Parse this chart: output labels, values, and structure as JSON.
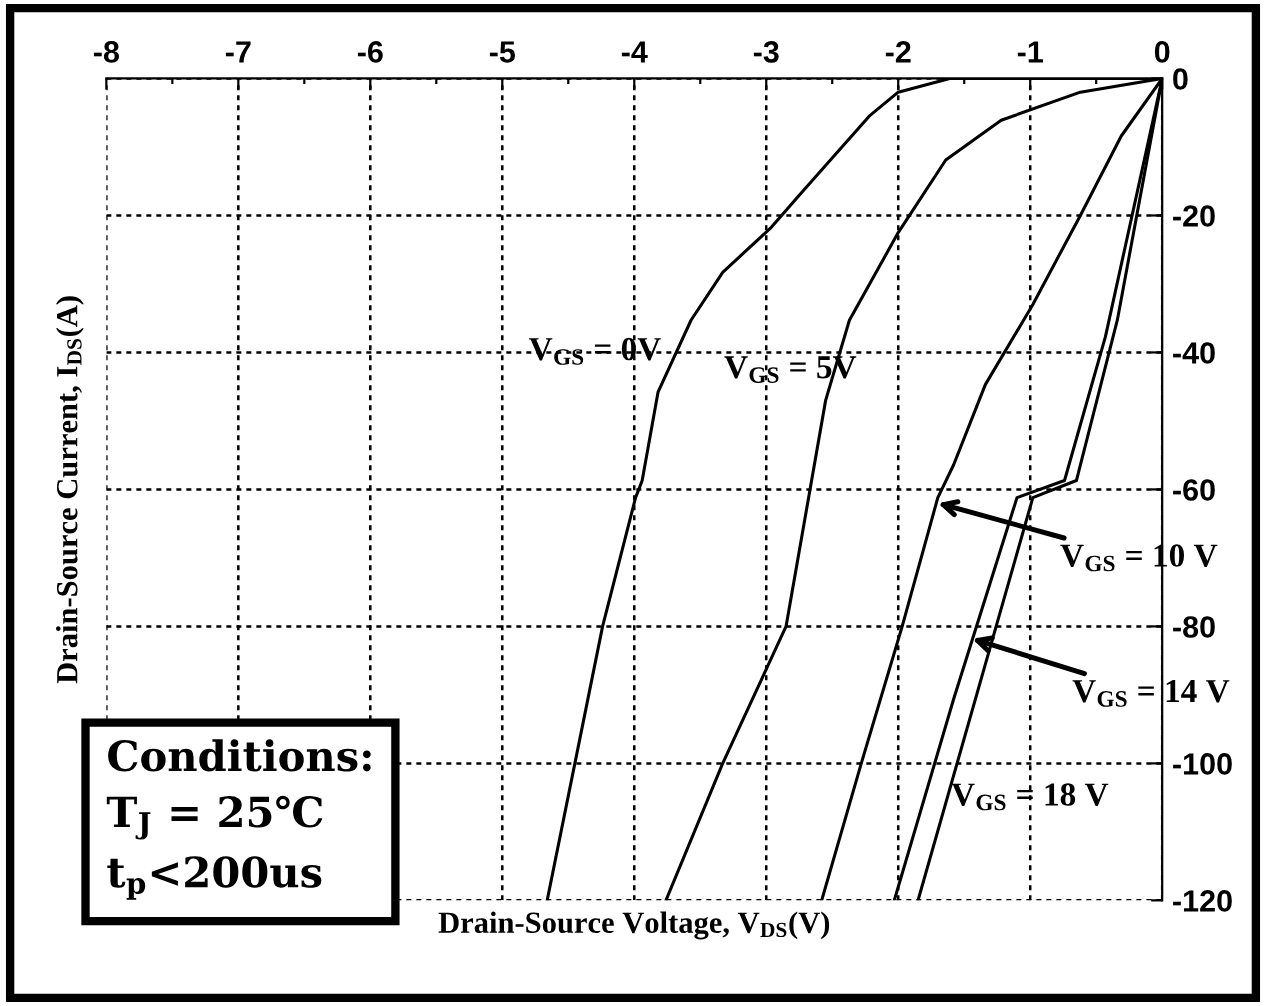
{
  "chart_data": {
    "type": "line",
    "xlabel": "Drain-Source Voltage, V$_{DS}$(V)",
    "ylabel": "Drain-Source Current, I$_{DS}$(A)",
    "xlim": [
      -8,
      0
    ],
    "ylim": [
      -120,
      0
    ],
    "xticks": [
      -8,
      {
        "value": -7.5,
        "label": null
      },
      -7,
      {
        "value": -6.5,
        "label": null
      },
      -6,
      {
        "value": -5.5,
        "label": null
      },
      -5,
      {
        "value": -4.5,
        "label": null
      },
      -4,
      {
        "value": -3.5,
        "label": null
      },
      -3,
      {
        "value": -2.5,
        "label": null
      },
      -2,
      {
        "value": -1.5,
        "label": null
      },
      -1,
      {
        "value": -0.5,
        "label": null
      },
      0
    ],
    "yticks": [
      0,
      -20,
      -40,
      -60,
      -80,
      -100,
      -120
    ],
    "grid": true,
    "legend": false,
    "marker": "none",
    "line_style": "solid",
    "series": [
      {
        "color": "#000000",
        "x": [
          0,
          -0.8,
          -1.61,
          -2.0,
          -2.22,
          -2.73,
          -2.97,
          -3.33,
          -3.57,
          -3.82,
          -3.94,
          -3.99,
          -4.24,
          -4.45,
          -4.66
        ],
        "values": [
          0,
          0,
          0,
          -2,
          -5.5,
          -16.6,
          -21.9,
          -28.3,
          -35.3,
          -45.8,
          -58.7,
          -61.2,
          -80,
          -100,
          -120
        ]
      },
      {
        "color": "#000000",
        "x": [
          0,
          -0.62,
          -1.22,
          -1.64,
          -2.0,
          -2.37,
          -2.55,
          -2.85,
          -3.33,
          -3.76
        ],
        "values": [
          0,
          -2,
          -6.1,
          -11.9,
          -22.5,
          -35.3,
          -47,
          -80,
          -100,
          -120
        ]
      },
      {
        "color": "#000000",
        "x": [
          0,
          -0.31,
          -0.62,
          -0.98,
          -1.34,
          -1.58,
          -1.7,
          -1.97,
          -2.28,
          -2.58
        ],
        "values": [
          0,
          -8.4,
          -20,
          -33,
          -44.7,
          -56.4,
          -61.2,
          -80,
          -100,
          -120
        ]
      },
      {
        "color": "#000000",
        "x": [
          0,
          -0.43,
          -0.74,
          -1.1,
          -1.58,
          -2.03
        ],
        "values": [
          0,
          -37.7,
          -58.7,
          -61.2,
          -90.6,
          -120
        ]
      },
      {
        "color": "#000000",
        "x": [
          0,
          -0.34,
          -0.65,
          -0.98,
          -1.85
        ],
        "values": [
          0,
          -35.3,
          -58.7,
          -61.2,
          -120
        ]
      }
    ],
    "annotations": [
      "V$_{GS}$ = 0V",
      "V$_{GS}$ = 5V",
      {
        "text": "V$_{GS}$ = 10 V",
        "x": -1.7,
        "y": -62
      },
      {
        "text": "V$_{GS}$ = 14 V",
        "x": -1.44,
        "y": -81.8
      },
      {
        "text": "V$_{GS}$ = 18 V",
        "x": -1.6,
        "y": -105
      },
      "Conditions:\nT$_{J}$ = 25℃\nt$_{p}$<200us"
    ]
  }
}
